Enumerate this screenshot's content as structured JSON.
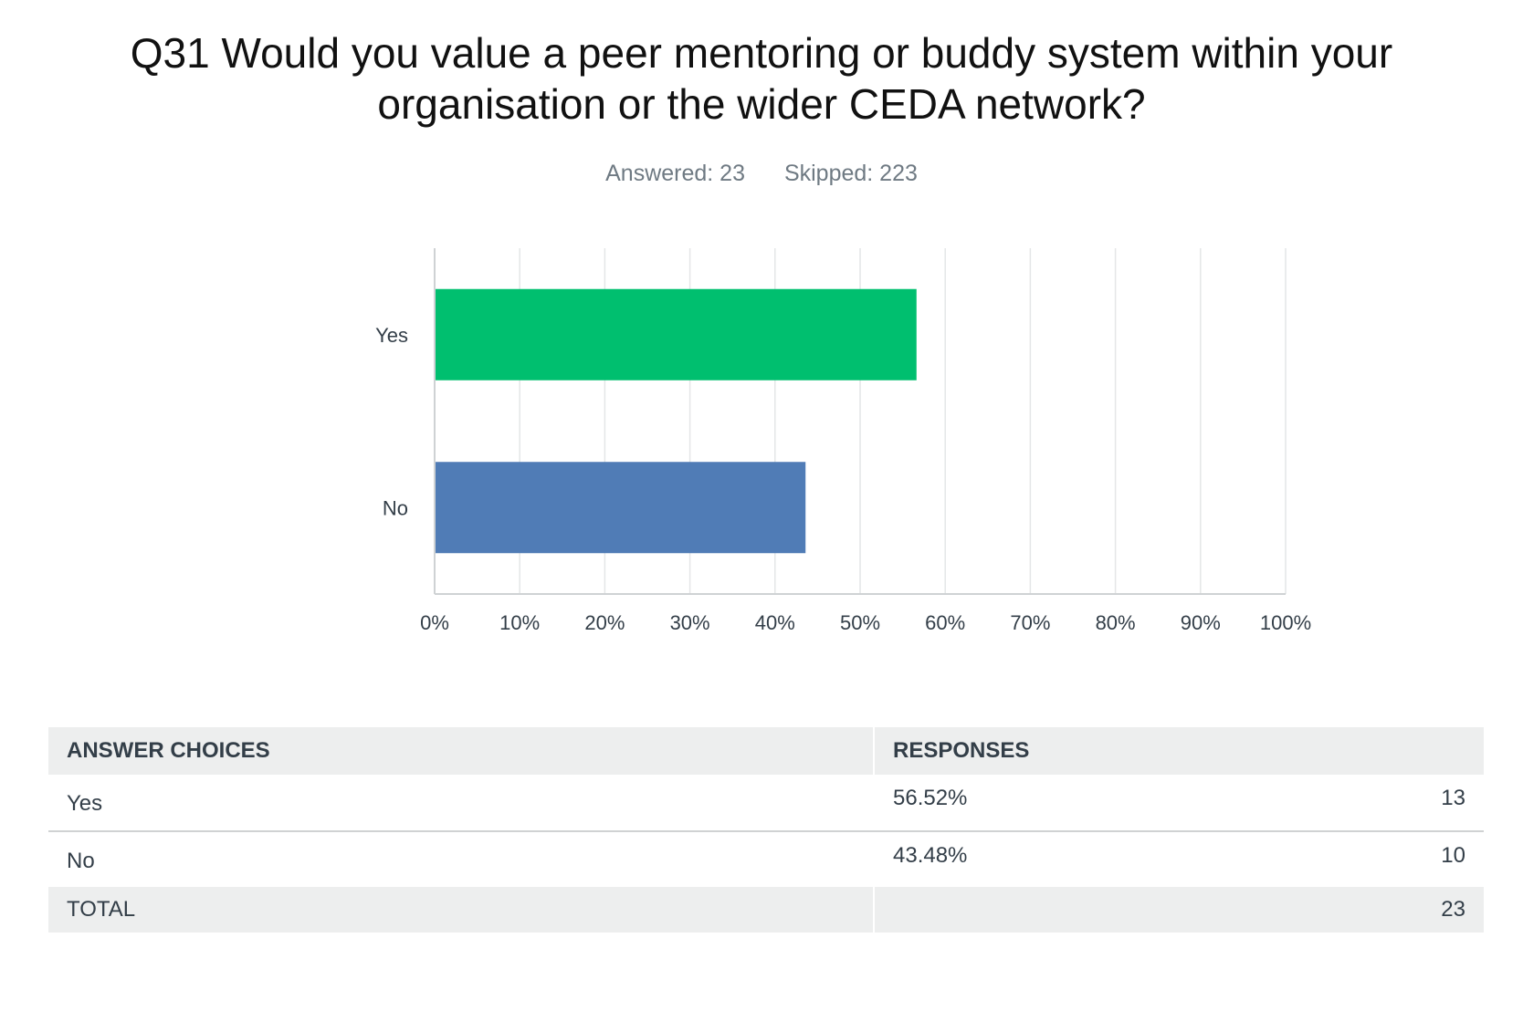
{
  "question": {
    "title_line1": "Q31 Would you value a peer mentoring or buddy system within your",
    "title_line2": "organisation or the wider CEDA network?",
    "answered_label": "Answered: 23",
    "skipped_label": "Skipped: 223"
  },
  "chart_data": {
    "type": "bar",
    "orientation": "horizontal",
    "categories": [
      "Yes",
      "No"
    ],
    "values": [
      56.52,
      43.48
    ],
    "colors": [
      "#00bf6f",
      "#507cb6"
    ],
    "x_ticks": [
      "0%",
      "10%",
      "20%",
      "30%",
      "40%",
      "50%",
      "60%",
      "70%",
      "80%",
      "90%",
      "100%"
    ],
    "xlim": [
      0,
      100
    ],
    "grid": true,
    "title": "",
    "xlabel": "",
    "ylabel": ""
  },
  "table": {
    "headers": {
      "choices": "ANSWER CHOICES",
      "responses": "RESPONSES"
    },
    "rows": [
      {
        "choice": "Yes",
        "percent": "56.52%",
        "count": "13"
      },
      {
        "choice": "No",
        "percent": "43.48%",
        "count": "10"
      }
    ],
    "total_label": "TOTAL",
    "total_count": "23"
  }
}
